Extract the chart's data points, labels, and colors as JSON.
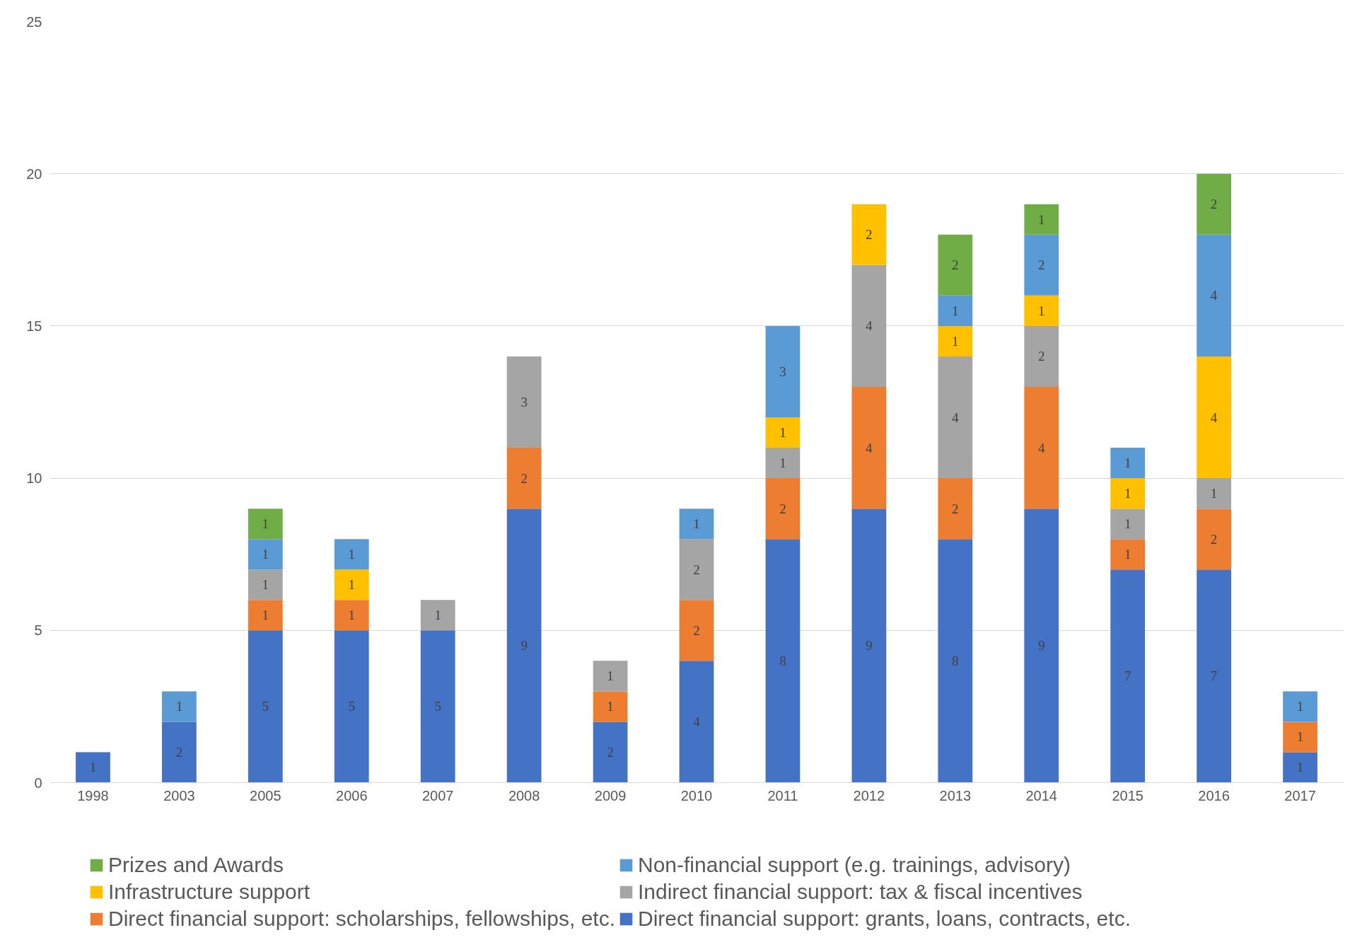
{
  "chart_data": {
    "type": "bar",
    "stacked": true,
    "data_labels": true,
    "grid": "y",
    "legend": "bottom",
    "ylim": [
      0,
      25
    ],
    "yticks": [
      0,
      5,
      10,
      15,
      20,
      25
    ],
    "categories": [
      "1998",
      "2003",
      "2005",
      "2006",
      "2007",
      "2008",
      "2009",
      "2010",
      "2011",
      "2012",
      "2013",
      "2014",
      "2015",
      "2016",
      "2017"
    ],
    "series": [
      {
        "name": "Direct financial support: grants, loans, contracts, etc.",
        "color": "#4472c4",
        "values": [
          1,
          2,
          5,
          5,
          5,
          9,
          2,
          4,
          8,
          9,
          8,
          9,
          7,
          7,
          1
        ]
      },
      {
        "name": "Direct financial support: scholarships, fellowships, etc.",
        "color": "#ed7d31",
        "values": [
          null,
          null,
          1,
          1,
          null,
          2,
          1,
          2,
          2,
          4,
          2,
          4,
          1,
          2,
          1
        ]
      },
      {
        "name": "Indirect financial support: tax & fiscal incentives",
        "color": "#a5a5a5",
        "values": [
          null,
          null,
          1,
          null,
          1,
          3,
          1,
          2,
          1,
          4,
          4,
          2,
          1,
          1,
          null
        ]
      },
      {
        "name": "Infrastructure support",
        "color": "#ffc000",
        "values": [
          null,
          null,
          null,
          1,
          null,
          null,
          null,
          null,
          1,
          2,
          1,
          1,
          1,
          4,
          null
        ]
      },
      {
        "name": "Non-financial support (e.g. trainings, advisory)",
        "color": "#5b9bd5",
        "values": [
          null,
          1,
          1,
          1,
          null,
          null,
          null,
          1,
          3,
          null,
          1,
          2,
          1,
          4,
          1
        ]
      },
      {
        "name": "Prizes and Awards",
        "color": "#70ad47",
        "values": [
          null,
          null,
          1,
          null,
          null,
          null,
          null,
          null,
          null,
          null,
          2,
          1,
          null,
          2,
          null
        ]
      }
    ]
  }
}
